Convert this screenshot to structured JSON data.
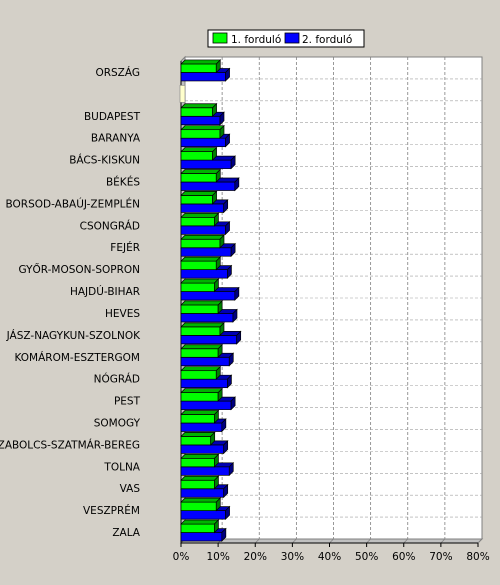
{
  "chart_data": {
    "type": "bar",
    "orientation": "horizontal",
    "categories": [
      "ORSZÁG",
      "",
      "BUDAPEST",
      "BARANYA",
      "BÁCS-KISKUN",
      "BÉKÉS",
      "BORSOD-ABAÚJ-ZEMPLÉN",
      "CSONGRÁD",
      "FEJÉR",
      "GYŐR-MOSON-SOPRON",
      "HAJDÚ-BIHAR",
      "HEVES",
      "JÁSZ-NAGYKUN-SZOLNOK",
      "KOMÁROM-ESZTERGOM",
      "NÓGRÁD",
      "PEST",
      "SOMOGY",
      "SZABOLCS-SZATMÁR-BEREG",
      "TOLNA",
      "VAS",
      "VESZPRÉM",
      "ZALA"
    ],
    "series": [
      {
        "name": "1. forduló",
        "color": "#00ff00",
        "values": [
          9.5,
          null,
          8.5,
          10.5,
          8.5,
          9.5,
          8.5,
          9,
          10.5,
          9.5,
          9,
          10,
          10.5,
          10,
          9.5,
          10,
          9,
          8,
          9,
          9,
          9.5,
          9
        ]
      },
      {
        "name": "2. forduló",
        "color": "#0000ff",
        "values": [
          12,
          null,
          10.5,
          12,
          13.5,
          14.5,
          11.5,
          12,
          13.5,
          12.5,
          14.5,
          14,
          15,
          13,
          12.5,
          13.5,
          11,
          11.5,
          13,
          11.5,
          12,
          11
        ]
      }
    ],
    "xlim": [
      0,
      80
    ],
    "x_ticks": [
      "0%",
      "10%",
      "20%",
      "30%",
      "40%",
      "50%",
      "60%",
      "70%",
      "80%"
    ],
    "grid": true,
    "legend_position": "top"
  }
}
